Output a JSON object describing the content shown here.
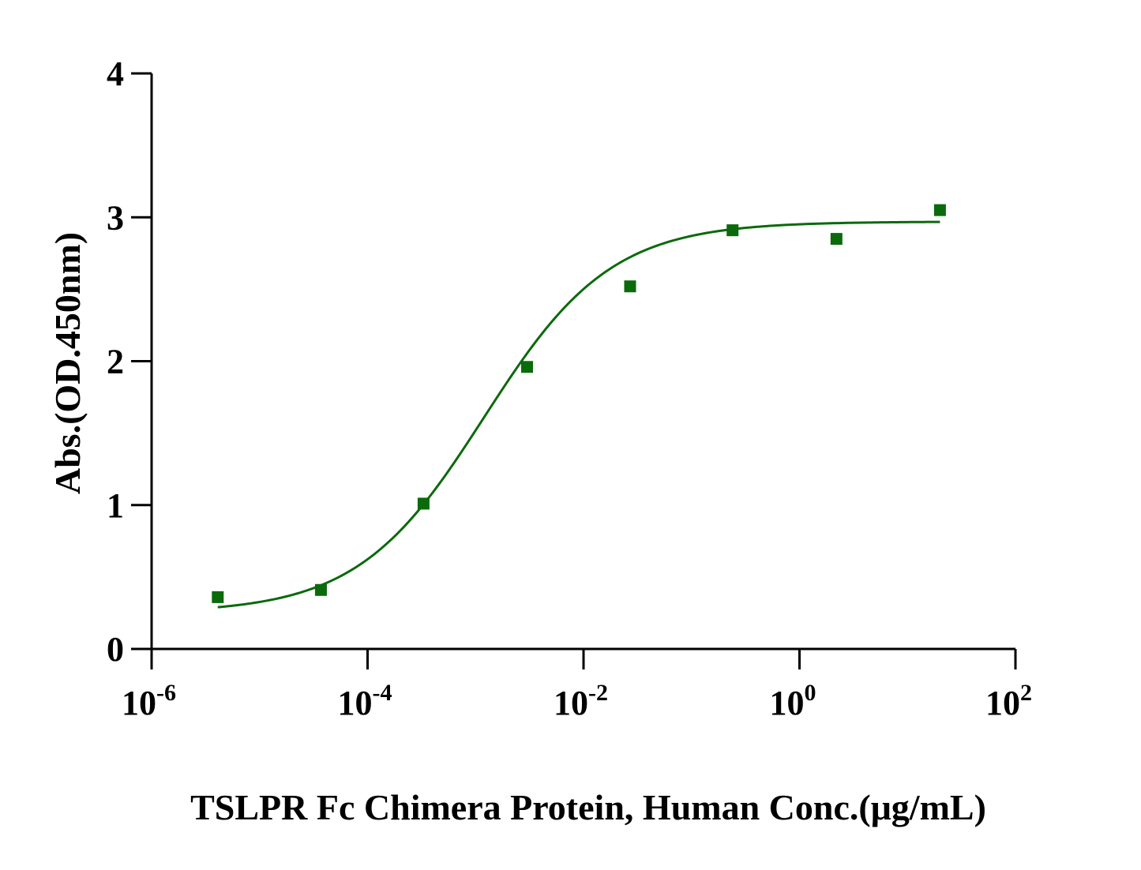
{
  "chart_data": {
    "type": "scatter",
    "title": "",
    "xlabel": "TSLPR Fc Chimera Protein, Human Conc.(μg/mL)",
    "ylabel": "Abs.(OD.450nm)",
    "x_scale": "log10",
    "xlim": [
      1e-06,
      100
    ],
    "ylim": [
      0,
      4
    ],
    "x_ticks": [
      {
        "base": "10",
        "exp": "-6"
      },
      {
        "base": "10",
        "exp": "-4"
      },
      {
        "base": "10",
        "exp": "-2"
      },
      {
        "base": "10",
        "exp": "0"
      },
      {
        "base": "10",
        "exp": "2"
      }
    ],
    "y_ticks": [
      "0",
      "1",
      "2",
      "3",
      "4"
    ],
    "grid": false,
    "legend": "none",
    "colors": {
      "series": "#0b6a0b",
      "axis": "#000000"
    },
    "series": [
      {
        "points": [
          {
            "x": 4.1e-06,
            "y": 0.36
          },
          {
            "x": 3.7e-05,
            "y": 0.41
          },
          {
            "x": 0.00033,
            "y": 1.01
          },
          {
            "x": 0.003,
            "y": 1.96
          },
          {
            "x": 0.027,
            "y": 2.52
          },
          {
            "x": 0.24,
            "y": 2.91
          },
          {
            "x": 2.2,
            "y": 2.85
          },
          {
            "x": 20,
            "y": 3.05
          }
        ],
        "fit": {
          "model": "4PL",
          "bottom": 0.25,
          "top": 2.97,
          "ec50": 0.0012,
          "hill": 0.74,
          "x_range": [
            4.1e-06,
            20
          ]
        }
      }
    ]
  }
}
